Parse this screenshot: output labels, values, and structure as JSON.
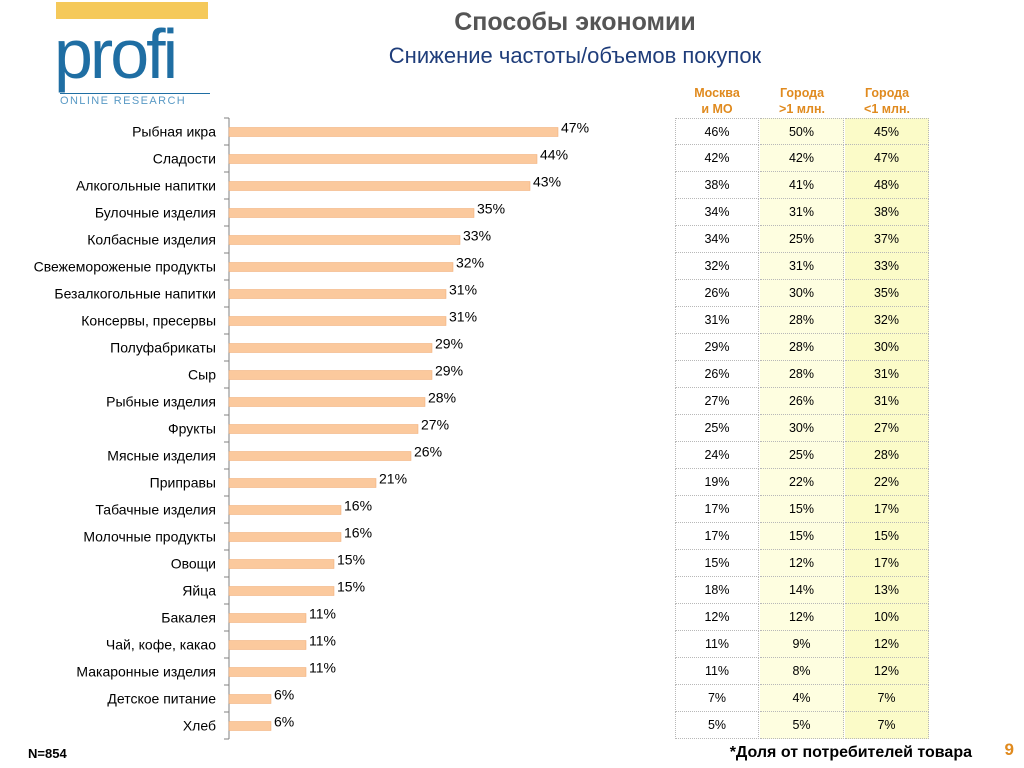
{
  "logo": {
    "word": "profi",
    "subtext": "ONLINE RESEARCH"
  },
  "title": "Способы экономии",
  "subtitle": "Снижение частоты/объемов покупок",
  "columns": [
    {
      "line1": "Москва",
      "line2": "и МО"
    },
    {
      "line1": "Города",
      "line2": ">1 млн."
    },
    {
      "line1": "Города",
      "line2": "<1 млн."
    }
  ],
  "colors": {
    "bar": "#fbc99d",
    "bar_stroke": "#f0a870",
    "column_header": "#e08a1e",
    "title": "#555555",
    "subtitle": "#1f3d7a"
  },
  "chart_data": {
    "type": "bar",
    "orientation": "horizontal",
    "categories": [
      "Рыбная икра",
      "Сладости",
      "Алкогольные напитки",
      "Булочные изделия",
      "Колбасные изделия",
      "Свежемороженые продукты",
      "Безалкогольные напитки",
      "Консервы, пресервы",
      "Полуфабрикаты",
      "Сыр",
      "Рыбные изделия",
      "Фрукты",
      "Мясные изделия",
      "Приправы",
      "Табачные изделия",
      "Молочные продукты",
      "Овощи",
      "Яйца",
      "Бакалея",
      "Чай, кофе, какао",
      "Макаронные изделия",
      "Детское питание",
      "Хлеб"
    ],
    "values": [
      47,
      44,
      43,
      35,
      33,
      32,
      31,
      31,
      29,
      29,
      28,
      27,
      26,
      21,
      16,
      16,
      15,
      15,
      11,
      11,
      11,
      6,
      6
    ],
    "value_labels": [
      "47%",
      "44%",
      "43%",
      "35%",
      "33%",
      "32%",
      "31%",
      "31%",
      "29%",
      "29%",
      "28%",
      "27%",
      "26%",
      "21%",
      "16%",
      "16%",
      "15%",
      "15%",
      "11%",
      "11%",
      "11%",
      "6%",
      "6%"
    ],
    "xlim": [
      0,
      60
    ]
  },
  "table": {
    "rows": [
      [
        "46%",
        "50%",
        "45%"
      ],
      [
        "42%",
        "42%",
        "47%"
      ],
      [
        "38%",
        "41%",
        "48%"
      ],
      [
        "34%",
        "31%",
        "38%"
      ],
      [
        "34%",
        "25%",
        "37%"
      ],
      [
        "32%",
        "31%",
        "33%"
      ],
      [
        "26%",
        "30%",
        "35%"
      ],
      [
        "31%",
        "28%",
        "32%"
      ],
      [
        "29%",
        "28%",
        "30%"
      ],
      [
        "26%",
        "28%",
        "31%"
      ],
      [
        "27%",
        "26%",
        "31%"
      ],
      [
        "25%",
        "30%",
        "27%"
      ],
      [
        "24%",
        "25%",
        "28%"
      ],
      [
        "19%",
        "22%",
        "22%"
      ],
      [
        "17%",
        "15%",
        "17%"
      ],
      [
        "17%",
        "15%",
        "15%"
      ],
      [
        "15%",
        "12%",
        "17%"
      ],
      [
        "18%",
        "14%",
        "13%"
      ],
      [
        "12%",
        "12%",
        "10%"
      ],
      [
        "11%",
        "9%",
        "12%"
      ],
      [
        "11%",
        "8%",
        "12%"
      ],
      [
        "7%",
        "4%",
        "7%"
      ],
      [
        "5%",
        "5%",
        "7%"
      ]
    ]
  },
  "footer": {
    "sample": "N=854",
    "note": "*Доля  от потребителей товара",
    "page": "9"
  }
}
